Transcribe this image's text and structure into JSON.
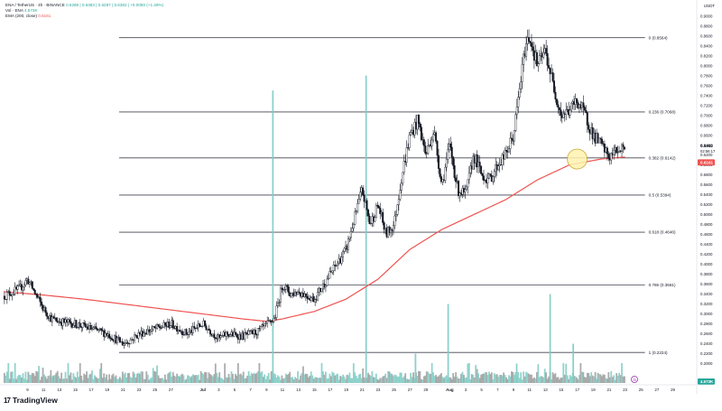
{
  "legend": {
    "symbol_line": "ENA / TetherUS · 4h · BINANCE",
    "ohlc_line": "0.6288 | 0.6383 | 0.6287 | 0.6382 | +0.0093 (+1.48%)",
    "vol_label": "Vol · ENA",
    "vol_value": "4.573K",
    "ema_label": "EMA (200, close)",
    "ema_value": "0.6161"
  },
  "branding": {
    "logo_text": "TradingView",
    "logo_mark": "17"
  },
  "colors": {
    "up": "#26a69a",
    "down": "#131722",
    "ema": "#ef5350",
    "fib_line": "#434651",
    "volume": "#9e9e9e",
    "volume_up": "#80cbc4",
    "circle_fill": "#fff3b0",
    "circle_stroke": "#c9a227",
    "price_tag": "#ef5350",
    "timezone_badge": "#9c27b0"
  },
  "chart_data": {
    "type": "candlestick",
    "title": "ENA / TetherUS · 4h · BINANCE",
    "price_unit": "USDT",
    "ylim": [
      0.19,
      0.925
    ],
    "y_ticks": [
      "0.9000",
      "0.8800",
      "0.8600",
      "0.8400",
      "0.8200",
      "0.8000",
      "0.7800",
      "0.7600",
      "0.7400",
      "0.7200",
      "0.7000",
      "0.6800",
      "0.6600",
      "0.6400",
      "0.6200",
      "0.6000",
      "0.5800",
      "0.5600",
      "0.5400",
      "0.5200",
      "0.5000",
      "0.4800",
      "0.4600",
      "0.4400",
      "0.4200",
      "0.4000",
      "0.3800",
      "0.3600",
      "0.3400",
      "0.3200",
      "0.3000",
      "0.2800",
      "0.2600",
      "0.2400",
      "0.2200",
      "0.2000"
    ],
    "x_ticks": [
      "9",
      "11",
      "13",
      "15",
      "17",
      "19",
      "21",
      "23",
      "25",
      "27",
      "Jul",
      "3",
      "5",
      "7",
      "9",
      "11",
      "13",
      "15",
      "17",
      "19",
      "21",
      "23",
      "25",
      "27",
      "29",
      "Aug",
      "3",
      "5",
      "7",
      "9",
      "11",
      "13",
      "15",
      "17",
      "19",
      "21",
      "23",
      "25",
      "27",
      "29"
    ],
    "x_tick_days": [
      -22,
      -20,
      -18,
      -16,
      -14,
      -12,
      -10,
      -8,
      -6,
      -4,
      0,
      2,
      4,
      6,
      8,
      10,
      12,
      14,
      16,
      18,
      20,
      22,
      24,
      26,
      28,
      31,
      33,
      35,
      37,
      39,
      41,
      43,
      45,
      47,
      49,
      51,
      53,
      55,
      57,
      59
    ],
    "x_day_range": [
      -25,
      62
    ],
    "price_path_days": [
      -25,
      -23,
      -22,
      -20,
      -19,
      -18,
      -16,
      -14,
      -12,
      -10,
      -9,
      -8,
      -6,
      -4,
      -2,
      0,
      2,
      3,
      5,
      7,
      9,
      10,
      11,
      12,
      14,
      16,
      18,
      20,
      21,
      22,
      23,
      24,
      25,
      26,
      27,
      28,
      29,
      30,
      31,
      32,
      33,
      34,
      35,
      36,
      37,
      38,
      39,
      40,
      40.5,
      41,
      42,
      43,
      44,
      45,
      46,
      47,
      48,
      49,
      50,
      51,
      52,
      53
    ],
    "price_path": [
      0.336,
      0.35,
      0.37,
      0.31,
      0.29,
      0.285,
      0.28,
      0.27,
      0.26,
      0.24,
      0.248,
      0.26,
      0.27,
      0.28,
      0.26,
      0.28,
      0.25,
      0.26,
      0.255,
      0.265,
      0.29,
      0.36,
      0.34,
      0.345,
      0.33,
      0.38,
      0.43,
      0.55,
      0.48,
      0.52,
      0.46,
      0.48,
      0.58,
      0.66,
      0.69,
      0.62,
      0.67,
      0.56,
      0.64,
      0.55,
      0.54,
      0.62,
      0.58,
      0.57,
      0.6,
      0.62,
      0.66,
      0.78,
      0.84,
      0.86,
      0.8,
      0.83,
      0.76,
      0.7,
      0.71,
      0.73,
      0.7,
      0.66,
      0.64,
      0.615,
      0.63,
      0.638
    ],
    "ema200_days": [
      -25,
      -20,
      -15,
      -10,
      -5,
      0,
      5,
      8,
      10,
      14,
      18,
      22,
      26,
      30,
      34,
      38,
      42,
      46,
      50,
      53
    ],
    "ema200": [
      0.345,
      0.338,
      0.33,
      0.32,
      0.31,
      0.3,
      0.29,
      0.285,
      0.29,
      0.305,
      0.33,
      0.37,
      0.43,
      0.47,
      0.5,
      0.53,
      0.57,
      0.6,
      0.612,
      0.616
    ],
    "fibonacci": [
      {
        "level": "0",
        "price": 0.8564,
        "label": "0 (0.8564)"
      },
      {
        "level": "0.236",
        "price": 0.7068,
        "label": "0.236 (0.7068)"
      },
      {
        "level": "0.382",
        "price": 0.6142,
        "label": "0.382 (0.6142)"
      },
      {
        "level": "0.5",
        "price": 0.5394,
        "label": "0.5 (0.5394)"
      },
      {
        "level": "0.618",
        "price": 0.4646,
        "label": "0.618 (0.4646)"
      },
      {
        "level": "0.786",
        "price": 0.3581,
        "label": "0.786 (0.3581)"
      },
      {
        "level": "1",
        "price": 0.2224,
        "label": "1 (0.2224)"
      }
    ],
    "current_price": "0.6382",
    "countdown": "02:56:17",
    "ema_tag": "0.6161",
    "highlight_circle": {
      "day": 47,
      "price": 0.612
    },
    "volume_axis_label": "4.573K",
    "timezone_badge": "⊙"
  }
}
